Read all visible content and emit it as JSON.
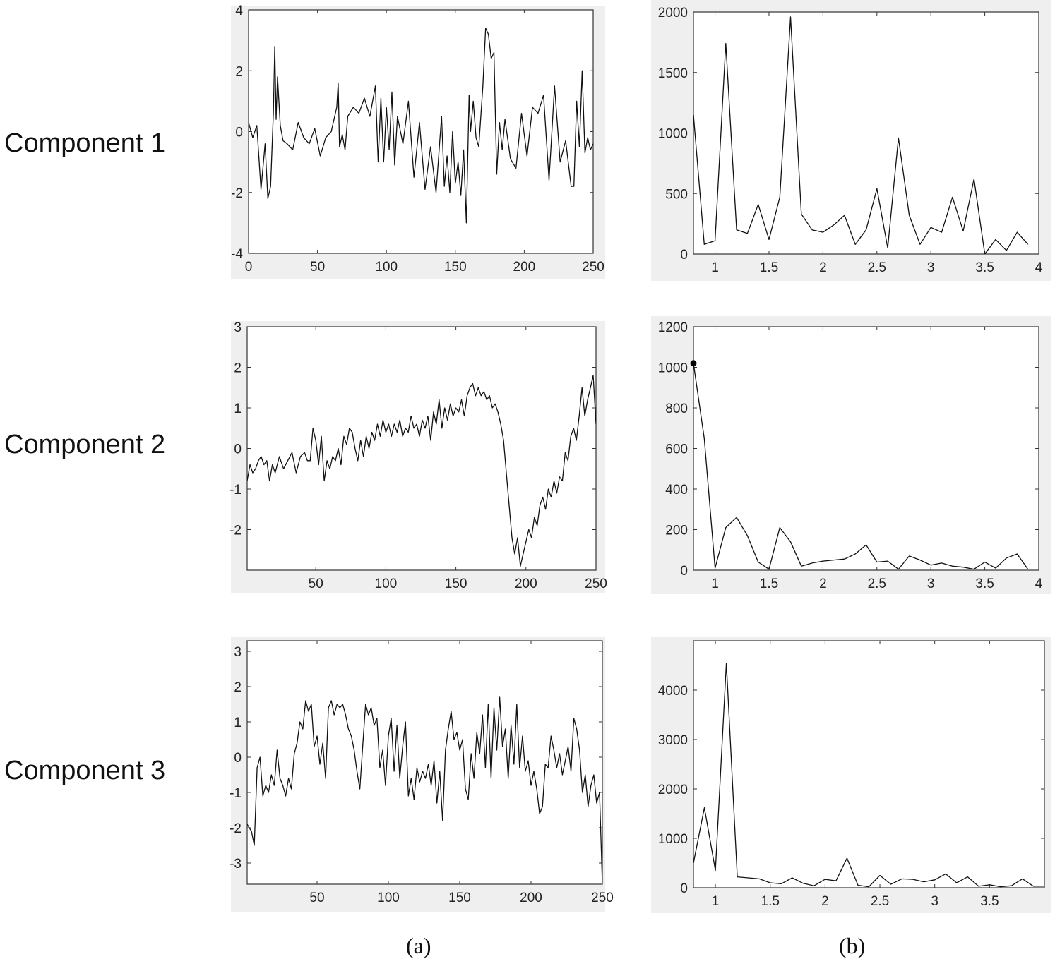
{
  "row_labels": [
    "Component 1",
    "Component 2",
    "Component 3"
  ],
  "captions": [
    "(a)",
    "(b)"
  ],
  "chart_data": [
    {
      "type": "line",
      "title": "",
      "xlabel": "",
      "ylabel": "",
      "xlim": [
        0,
        250
      ],
      "ylim": [
        -4,
        4
      ],
      "xticks": [
        0,
        50,
        100,
        150,
        200,
        250
      ],
      "yticks": [
        -4,
        -2,
        0,
        2,
        4
      ],
      "series": [
        {
          "x": [
            0,
            3,
            6,
            9,
            12,
            14,
            16,
            18,
            19,
            20,
            21,
            23,
            25,
            28,
            32,
            36,
            40,
            44,
            48,
            52,
            56,
            60,
            62,
            64,
            65,
            66,
            68,
            70,
            72,
            76,
            80,
            84,
            88,
            92,
            94,
            96,
            98,
            100,
            102,
            104,
            106,
            108,
            112,
            116,
            120,
            124,
            128,
            132,
            136,
            140,
            142,
            144,
            146,
            148,
            150,
            152,
            154,
            156,
            158,
            160,
            161,
            163,
            165,
            167,
            170,
            172,
            174,
            176,
            178,
            180,
            182,
            184,
            186,
            190,
            194,
            198,
            202,
            206,
            210,
            214,
            218,
            222,
            226,
            230,
            234,
            236,
            238,
            240,
            242,
            244,
            246,
            248,
            250
          ],
          "y": [
            0.3,
            -0.2,
            0.2,
            -1.9,
            -0.4,
            -2.2,
            -1.8,
            0.6,
            2.8,
            0.4,
            1.8,
            0.2,
            -0.3,
            -0.4,
            -0.6,
            0.3,
            -0.2,
            -0.4,
            0.1,
            -0.8,
            -0.2,
            0.0,
            0.4,
            0.8,
            1.6,
            -0.5,
            -0.1,
            -0.6,
            0.5,
            0.8,
            0.6,
            1.1,
            0.5,
            1.5,
            -1.0,
            1.1,
            -1.0,
            0.8,
            -0.6,
            1.3,
            -1.1,
            0.5,
            -0.4,
            1.0,
            -1.5,
            0.3,
            -1.9,
            -0.5,
            -2.0,
            0.5,
            -1.8,
            -0.8,
            -2.0,
            0.0,
            -1.7,
            -1.0,
            -2.1,
            -0.6,
            -3.0,
            1.2,
            0.0,
            1.0,
            -0.2,
            -0.5,
            1.5,
            3.4,
            3.2,
            2.4,
            2.6,
            -1.4,
            0.3,
            -0.6,
            0.4,
            -0.9,
            -1.2,
            0.6,
            -0.8,
            0.8,
            0.6,
            1.2,
            -1.6,
            1.5,
            -1.0,
            -0.3,
            -1.8,
            -1.8,
            1.0,
            -0.5,
            2.0,
            -0.7,
            -0.2,
            -0.6,
            -0.4
          ]
        }
      ]
    },
    {
      "type": "line",
      "title": "",
      "xlabel": "",
      "ylabel": "",
      "xlim": [
        0.8,
        4
      ],
      "ylim": [
        0,
        2000
      ],
      "xticks": [
        1,
        1.5,
        2,
        2.5,
        3,
        3.5,
        4
      ],
      "yticks": [
        0,
        500,
        1000,
        1500,
        2000
      ],
      "series": [
        {
          "x": [
            0.8,
            0.9,
            1.0,
            1.1,
            1.2,
            1.3,
            1.4,
            1.5,
            1.6,
            1.7,
            1.8,
            1.9,
            2.0,
            2.1,
            2.2,
            2.3,
            2.4,
            2.5,
            2.6,
            2.7,
            2.8,
            2.9,
            3.0,
            3.1,
            3.2,
            3.3,
            3.4,
            3.5,
            3.6,
            3.7,
            3.8,
            3.9
          ],
          "y": [
            1150,
            80,
            110,
            1740,
            200,
            170,
            410,
            120,
            470,
            1960,
            330,
            200,
            180,
            240,
            320,
            80,
            200,
            540,
            50,
            960,
            320,
            80,
            220,
            180,
            470,
            190,
            620,
            0,
            120,
            30,
            180,
            80
          ]
        }
      ]
    },
    {
      "type": "line",
      "title": "",
      "xlabel": "",
      "ylabel": "",
      "xlim": [
        1,
        250
      ],
      "ylim": [
        -3,
        3
      ],
      "xticks": [
        50,
        100,
        150,
        200,
        250
      ],
      "yticks": [
        -2,
        -1,
        0,
        1,
        2,
        3
      ],
      "series": [
        {
          "x": [
            1,
            3,
            5,
            7,
            9,
            11,
            13,
            15,
            17,
            19,
            21,
            24,
            27,
            30,
            33,
            36,
            39,
            42,
            44,
            46,
            48,
            50,
            52,
            54,
            56,
            58,
            60,
            62,
            64,
            66,
            68,
            70,
            72,
            74,
            76,
            78,
            80,
            82,
            84,
            86,
            88,
            90,
            92,
            94,
            96,
            98,
            100,
            102,
            104,
            106,
            108,
            110,
            112,
            114,
            116,
            118,
            120,
            122,
            124,
            126,
            128,
            130,
            132,
            134,
            136,
            138,
            140,
            142,
            144,
            146,
            148,
            150,
            152,
            154,
            156,
            158,
            160,
            162,
            164,
            166,
            168,
            170,
            172,
            174,
            176,
            178,
            180,
            182,
            184,
            186,
            188,
            190,
            192,
            194,
            196,
            198,
            200,
            202,
            204,
            206,
            208,
            210,
            212,
            214,
            216,
            218,
            220,
            222,
            224,
            226,
            228,
            230,
            232,
            234,
            236,
            238,
            240,
            242,
            244,
            246,
            248,
            250
          ],
          "y": [
            -0.8,
            -0.4,
            -0.6,
            -0.5,
            -0.3,
            -0.2,
            -0.4,
            -0.3,
            -0.8,
            -0.4,
            -0.6,
            -0.2,
            -0.5,
            -0.3,
            -0.1,
            -0.6,
            -0.2,
            -0.1,
            -0.3,
            -0.3,
            0.5,
            0.2,
            -0.4,
            0.3,
            -0.8,
            -0.3,
            -0.5,
            -0.2,
            -0.3,
            0.0,
            -0.4,
            0.3,
            0.1,
            0.5,
            0.4,
            0.0,
            -0.3,
            0.2,
            -0.2,
            0.3,
            0.0,
            0.4,
            0.2,
            0.6,
            0.3,
            0.7,
            0.4,
            0.6,
            0.3,
            0.6,
            0.4,
            0.7,
            0.3,
            0.5,
            0.4,
            0.8,
            0.5,
            0.6,
            0.3,
            0.7,
            0.5,
            0.8,
            0.2,
            0.9,
            0.6,
            1.2,
            0.5,
            1.0,
            0.7,
            1.1,
            0.8,
            1.0,
            0.9,
            1.2,
            0.8,
            1.3,
            1.5,
            1.6,
            1.3,
            1.5,
            1.3,
            1.4,
            1.2,
            1.3,
            1.0,
            1.1,
            0.9,
            0.6,
            0.2,
            -0.6,
            -1.4,
            -2.2,
            -2.6,
            -2.2,
            -2.9,
            -2.6,
            -2.3,
            -2.0,
            -2.2,
            -1.7,
            -1.9,
            -1.4,
            -1.2,
            -1.5,
            -1.0,
            -1.2,
            -0.8,
            -1.1,
            -0.7,
            -0.8,
            -0.1,
            -0.3,
            0.3,
            0.5,
            0.2,
            0.8,
            1.5,
            0.8,
            1.2,
            1.5,
            1.8,
            0.6
          ]
        }
      ]
    },
    {
      "type": "line",
      "title": "",
      "xlabel": "",
      "ylabel": "",
      "xlim": [
        0.8,
        4
      ],
      "ylim": [
        0,
        1200
      ],
      "xticks": [
        1,
        1.5,
        2,
        2.5,
        3,
        3.5,
        4
      ],
      "yticks": [
        0,
        200,
        400,
        600,
        800,
        1000,
        1200
      ],
      "markers": [
        {
          "x": 0.8,
          "y": 1020
        }
      ],
      "series": [
        {
          "x": [
            0.8,
            0.9,
            1.0,
            1.1,
            1.2,
            1.3,
            1.4,
            1.5,
            1.6,
            1.7,
            1.8,
            1.9,
            2.0,
            2.1,
            2.2,
            2.3,
            2.4,
            2.5,
            2.6,
            2.7,
            2.8,
            2.9,
            3.0,
            3.1,
            3.2,
            3.3,
            3.4,
            3.5,
            3.6,
            3.7,
            3.8,
            3.9
          ],
          "y": [
            1020,
            650,
            10,
            210,
            260,
            170,
            40,
            5,
            210,
            140,
            20,
            35,
            45,
            50,
            55,
            80,
            125,
            40,
            45,
            5,
            70,
            50,
            25,
            35,
            20,
            15,
            5,
            40,
            10,
            60,
            80,
            5
          ]
        }
      ]
    },
    {
      "type": "line",
      "title": "",
      "xlabel": "",
      "ylabel": "",
      "xlim": [
        1,
        250
      ],
      "ylim": [
        -3.6,
        3.3
      ],
      "xticks": [
        50,
        100,
        150,
        200,
        250
      ],
      "yticks": [
        -3,
        -2,
        -1,
        0,
        1,
        2,
        3
      ],
      "series": [
        {
          "x": [
            1,
            4,
            6,
            8,
            10,
            12,
            14,
            16,
            18,
            20,
            22,
            24,
            26,
            28,
            30,
            32,
            34,
            36,
            38,
            40,
            42,
            44,
            46,
            48,
            50,
            52,
            54,
            56,
            58,
            60,
            62,
            64,
            66,
            68,
            70,
            72,
            74,
            76,
            78,
            80,
            82,
            84,
            86,
            88,
            90,
            92,
            94,
            96,
            98,
            100,
            102,
            104,
            106,
            108,
            110,
            112,
            114,
            116,
            118,
            120,
            122,
            124,
            126,
            128,
            130,
            132,
            134,
            136,
            138,
            140,
            142,
            144,
            146,
            148,
            150,
            152,
            154,
            156,
            158,
            160,
            162,
            164,
            166,
            168,
            170,
            172,
            174,
            176,
            178,
            180,
            182,
            184,
            186,
            188,
            190,
            192,
            194,
            196,
            198,
            200,
            202,
            204,
            206,
            208,
            210,
            212,
            214,
            216,
            218,
            220,
            222,
            224,
            226,
            228,
            230,
            232,
            234,
            236,
            238,
            240,
            242,
            244,
            246,
            248,
            250
          ],
          "y": [
            -1.9,
            -2.1,
            -2.5,
            -0.3,
            0.0,
            -1.1,
            -0.8,
            -1.0,
            -0.5,
            -0.8,
            0.2,
            -0.6,
            -0.8,
            -1.1,
            -0.6,
            -0.9,
            0.1,
            0.4,
            1.0,
            0.8,
            1.6,
            1.3,
            1.5,
            0.3,
            0.6,
            -0.2,
            0.4,
            -0.6,
            1.4,
            1.6,
            1.2,
            1.5,
            1.4,
            1.5,
            1.2,
            0.8,
            0.6,
            0.2,
            -0.4,
            -0.9,
            0.3,
            1.5,
            1.2,
            1.4,
            0.9,
            1.1,
            -0.3,
            0.2,
            -0.8,
            0.6,
            1.1,
            -0.4,
            0.9,
            -0.6,
            0.3,
            1.0,
            -1.1,
            -0.6,
            -1.2,
            -0.3,
            -0.7,
            -0.4,
            -0.6,
            -0.2,
            -0.8,
            -0.1,
            -1.3,
            -0.4,
            -1.8,
            0.2,
            0.8,
            1.3,
            0.5,
            0.7,
            0.2,
            0.5,
            -0.9,
            -1.2,
            0.1,
            -0.6,
            0.7,
            0.1,
            1.2,
            -0.3,
            1.5,
            -0.6,
            1.4,
            0.2,
            1.7,
            0.3,
            0.8,
            -0.6,
            0.9,
            -0.2,
            1.5,
            -0.3,
            0.6,
            -0.4,
            -0.1,
            -0.8,
            -0.4,
            -0.9,
            -1.6,
            -1.4,
            -0.2,
            -0.3,
            0.6,
            0.2,
            -0.3,
            0.1,
            -0.5,
            -0.1,
            0.3,
            -0.4,
            1.1,
            0.8,
            0.2,
            -1.0,
            -0.5,
            -1.4,
            -0.8,
            -0.5,
            -1.3,
            -1.0,
            -3.6
          ]
        }
      ]
    },
    {
      "type": "line",
      "title": "",
      "xlabel": "",
      "ylabel": "",
      "xlim": [
        0.8,
        4
      ],
      "ylim": [
        0,
        5000
      ],
      "xticks": [
        1,
        1.5,
        2,
        2.5,
        3,
        3.5
      ],
      "yticks": [
        0,
        1000,
        2000,
        3000,
        4000
      ],
      "series": [
        {
          "x": [
            0.8,
            0.9,
            1.0,
            1.1,
            1.2,
            1.3,
            1.4,
            1.5,
            1.6,
            1.7,
            1.8,
            1.9,
            2.0,
            2.1,
            2.2,
            2.3,
            2.4,
            2.5,
            2.6,
            2.7,
            2.8,
            2.9,
            3.0,
            3.1,
            3.2,
            3.3,
            3.4,
            3.5,
            3.6,
            3.7,
            3.8,
            3.9,
            4.0
          ],
          "y": [
            500,
            1620,
            350,
            4550,
            220,
            200,
            180,
            100,
            80,
            200,
            90,
            40,
            170,
            140,
            600,
            50,
            20,
            250,
            70,
            180,
            170,
            120,
            160,
            280,
            100,
            220,
            30,
            60,
            20,
            40,
            180,
            30,
            30
          ]
        }
      ]
    }
  ]
}
